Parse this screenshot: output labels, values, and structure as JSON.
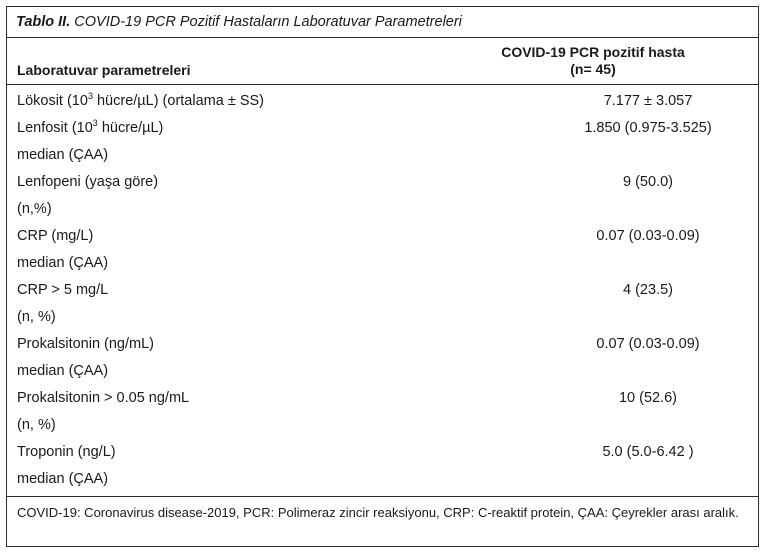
{
  "caption": {
    "label": "Tablo II.",
    "text": "COVID-19 PCR Pozitif Hastaların Laboratuvar Parametreleri"
  },
  "header": {
    "col1": "Laboratuvar parametreleri",
    "col2_line1": "COVID-19 PCR pozitif hasta",
    "col2_line2": "(n= 45)"
  },
  "rows": [
    {
      "line1_pre": "Lökosit (10",
      "sup": "3",
      "line1_post": " hücre/µL) (ortalama ± SS)",
      "line2": "",
      "value": "7.177 ± 3.057"
    },
    {
      "line1_pre": "Lenfosit (10",
      "sup": "3",
      "line1_post": " hücre/µL)",
      "line2": "median (ÇAA)",
      "value": "1.850 (0.975-3.525)"
    },
    {
      "line1_pre": "Lenfopeni (yaşa göre)",
      "sup": "",
      "line1_post": "",
      "line2": "(n,%)",
      "value": "9 (50.0)"
    },
    {
      "line1_pre": "CRP (mg/L)",
      "sup": "",
      "line1_post": "",
      "line2": "median (ÇAA)",
      "value": "0.07 (0.03-0.09)"
    },
    {
      "line1_pre": "CRP > 5 mg/L",
      "sup": "",
      "line1_post": "",
      "line2": "(n, %)",
      "value": "4 (23.5)"
    },
    {
      "line1_pre": "Prokalsitonin (ng/mL)",
      "sup": "",
      "line1_post": "",
      "line2": "median (ÇAA)",
      "value": "0.07 (0.03-0.09)"
    },
    {
      "line1_pre": "Prokalsitonin > 0.05 ng/mL",
      "sup": "",
      "line1_post": "",
      "line2": "(n, %)",
      "value": "10 (52.6)"
    },
    {
      "line1_pre": "Troponin (ng/L)",
      "sup": "",
      "line1_post": "",
      "line2": "median (ÇAA)",
      "value": "5.0 (5.0-6.42 )"
    }
  ],
  "footnote": "COVID-19: Coronavirus disease-2019, PCR: Polimeraz zincir reaksiyonu, CRP: C-reaktif protein, ÇAA: Çeyrekler arası aralık."
}
